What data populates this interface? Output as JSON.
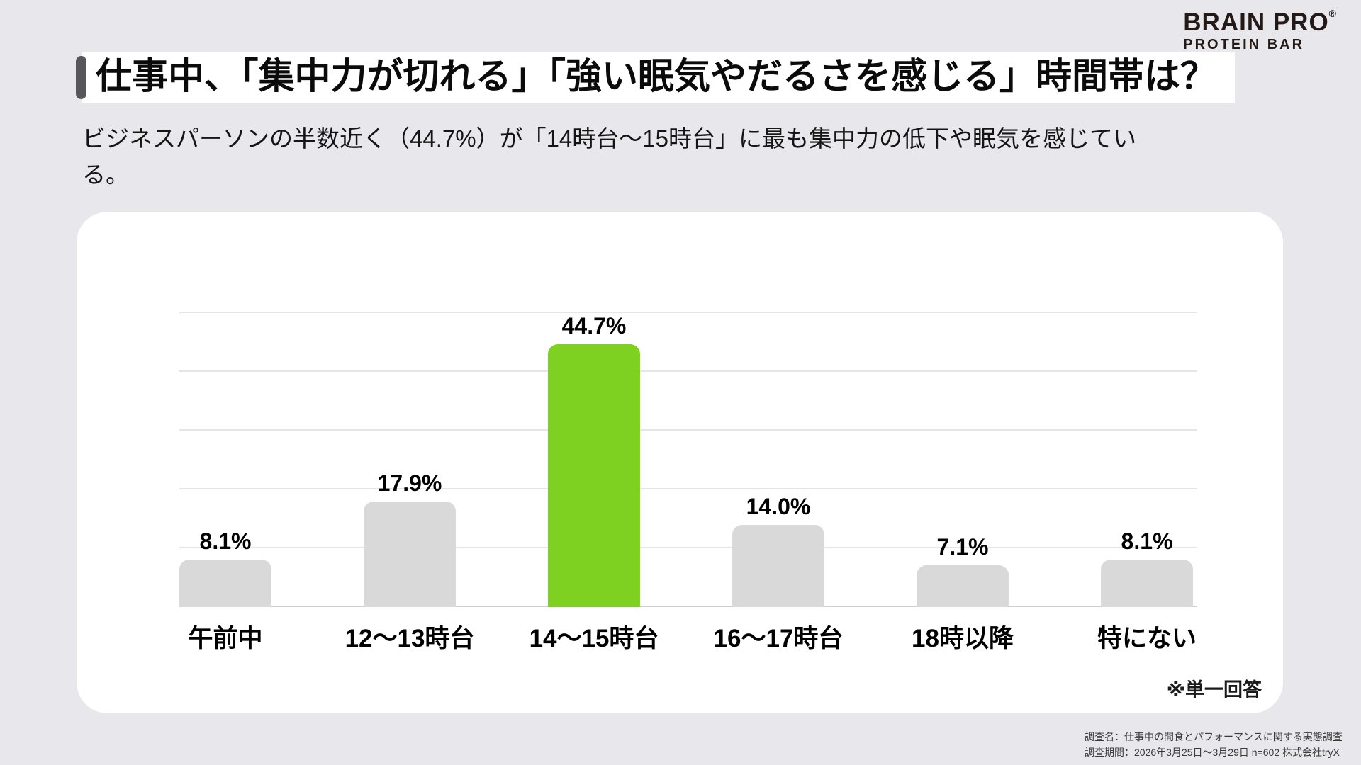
{
  "brand": {
    "name": "BRAIN PRO",
    "registered_mark": "®",
    "subname": "PROTEIN BAR"
  },
  "header": {
    "title": "仕事中、「集中力が切れる」「強い眠気やだるさを感じる」時間帯は？"
  },
  "lead": {
    "text": "ビジネスパーソンの半数近く（44.7%）が「14時台〜15時台」に最も集中力の低下や眠気を感じている。"
  },
  "chart_data": {
    "type": "bar",
    "categories": [
      "午前中",
      "12〜13時台",
      "14〜15時台",
      "16〜17時台",
      "18時以降",
      "特にない"
    ],
    "values": [
      8.1,
      17.9,
      44.7,
      14.0,
      7.1,
      8.1
    ],
    "value_labels": [
      "8.1%",
      "17.9%",
      "44.7%",
      "14.0%",
      "7.1%",
      "8.1%"
    ],
    "highlight_index": 2,
    "ylim": [
      0,
      50
    ],
    "gridline_step": 10,
    "grid": true,
    "legend": "none",
    "note": "※単一回答",
    "colors": {
      "bar_default": "#D9D9D9",
      "bar_highlight": "#7ED021"
    }
  },
  "colors": {
    "background": "#E8E8EC",
    "card": "#FFFFFF",
    "title_accent_bar": "#57575B",
    "logo_text": "#231916"
  },
  "footer": {
    "line1": "調査名：仕事中の間食とパフォーマンスに関する実態調査",
    "line2": "調査期間：2026年3月25日〜3月29日 n=602 株式会社tryX"
  }
}
